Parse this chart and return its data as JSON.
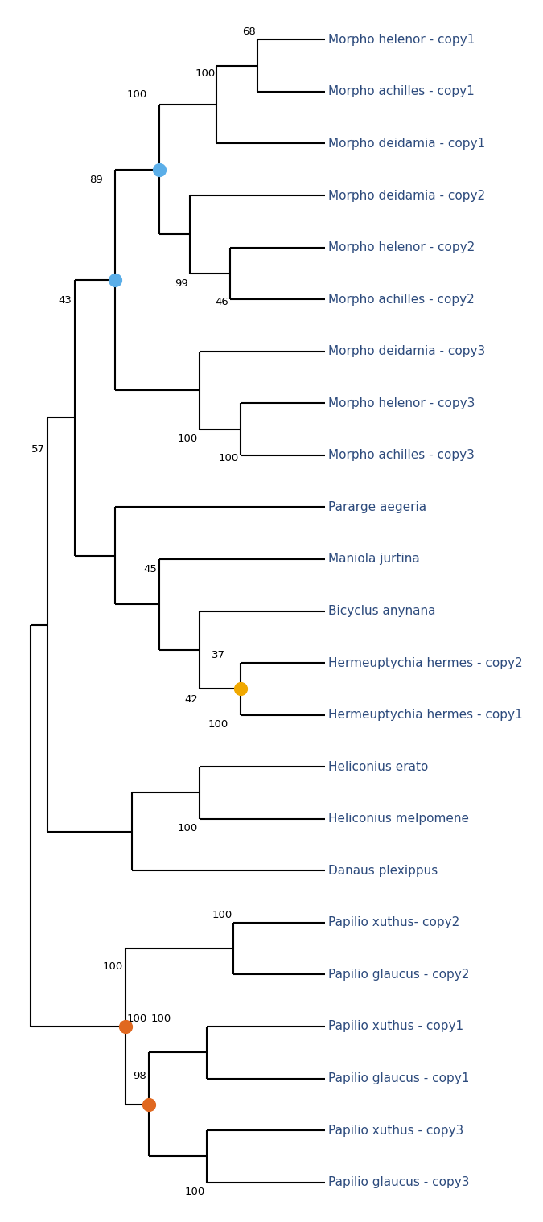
{
  "taxon_y": {
    "Morpho helenor - copy1": 1,
    "Morpho achilles - copy1": 2,
    "Morpho deidamia - copy1": 3,
    "Morpho deidamia - copy2": 4,
    "Morpho helenor - copy2": 5,
    "Morpho achilles - copy2": 6,
    "Morpho deidamia - copy3": 7,
    "Morpho helenor - copy3": 8,
    "Morpho achilles - copy3": 9,
    "Pararge aegeria": 10,
    "Maniola jurtina": 11,
    "Bicyclus anynana": 12,
    "Hermeuptychia hermes - copy2": 13,
    "Hermeuptychia hermes - copy1": 14,
    "Heliconius erato": 15,
    "Heliconius melpomene": 16,
    "Danaus plexippus": 17,
    "Papilio xuthus- copy2": 18,
    "Papilio glaucus - copy2": 19,
    "Papilio xuthus - copy1": 20,
    "Papilio glaucus - copy1": 21,
    "Papilio xuthus - copy3": 22,
    "Papilio glaucus - copy3": 23
  },
  "line_color": "#000000",
  "text_color": "#2c4a7c",
  "bg_color": "#ffffff",
  "label_fontsize": 11,
  "bootstrap_fontsize": 9.5,
  "node_colors": {
    "blue": "#5baee8",
    "yellow": "#f0a800",
    "orange": "#e06820"
  }
}
